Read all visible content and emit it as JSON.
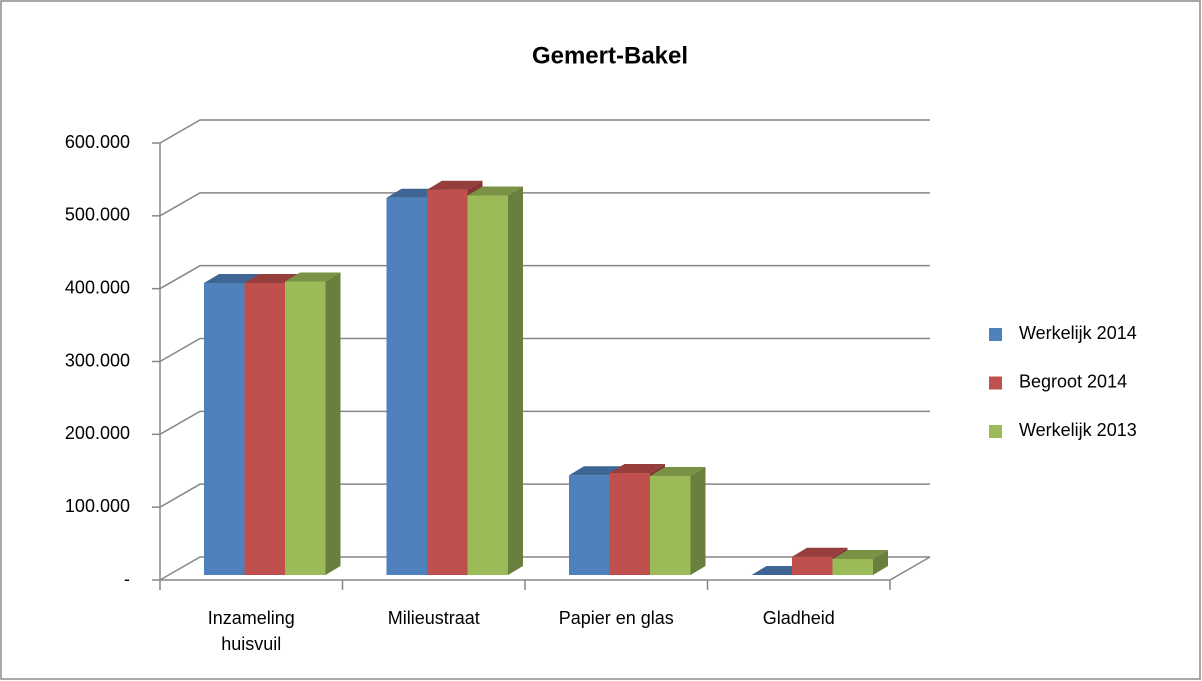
{
  "chart_data": {
    "type": "bar3d",
    "title": "Gemert-Bakel",
    "categories": [
      "Inzameling huisvuil",
      "Milieustraat",
      "Papier en glas",
      "Gladheid"
    ],
    "series": [
      {
        "name": "Werkelijk 2014",
        "color": "#4f81bd",
        "values": [
          401000,
          518000,
          137000,
          0
        ]
      },
      {
        "name": "Begroot 2014",
        "color": "#c0504d",
        "values": [
          401000,
          529000,
          140000,
          25000
        ]
      },
      {
        "name": "Werkelijk 2013",
        "color": "#9bbb59",
        "values": [
          403000,
          521000,
          136000,
          22000
        ]
      }
    ],
    "ylim": [
      0,
      600000
    ],
    "yticks": [
      {
        "value": 0,
        "label": "-"
      },
      {
        "value": 100000,
        "label": "100.000"
      },
      {
        "value": 200000,
        "label": "200.000"
      },
      {
        "value": 300000,
        "label": "300.000"
      },
      {
        "value": 400000,
        "label": "400.000"
      },
      {
        "value": 500000,
        "label": "500.000"
      },
      {
        "value": 600000,
        "label": "600.000"
      }
    ],
    "grid": true,
    "legend": "right"
  }
}
